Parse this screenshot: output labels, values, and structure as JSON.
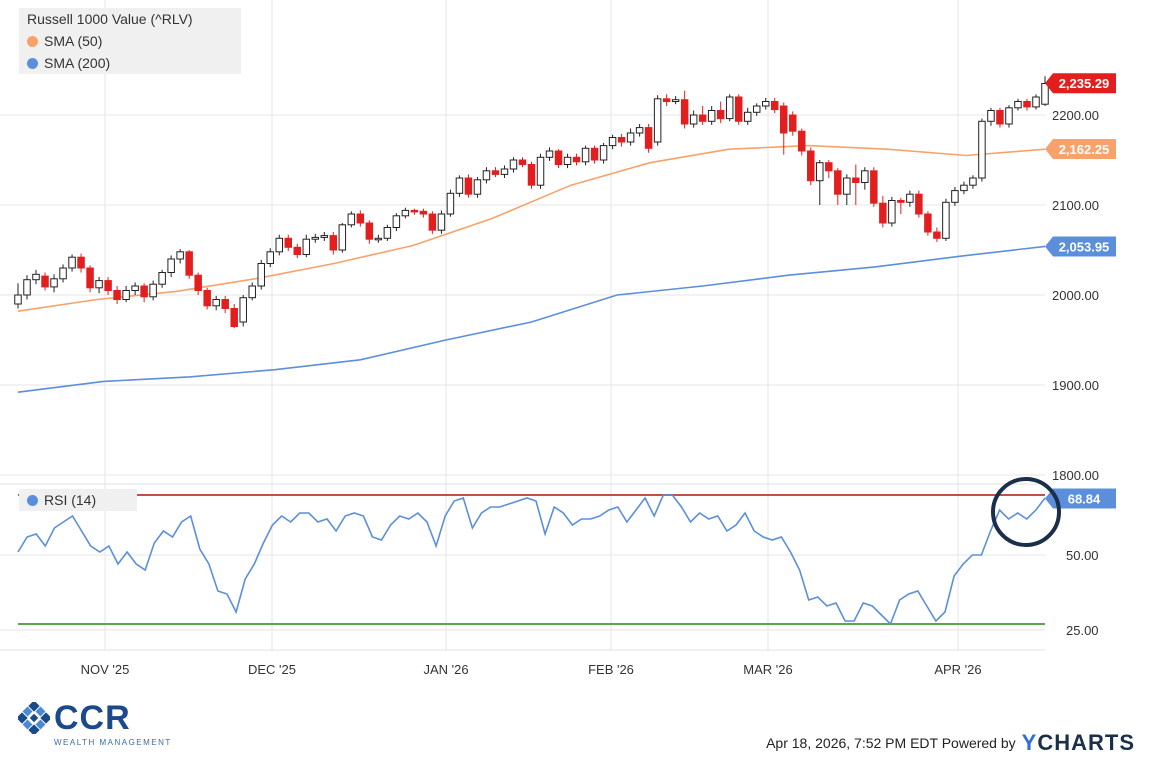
{
  "legend": {
    "title": "Russell 1000 Value (^RLV)",
    "sma50": "SMA (50)",
    "sma200": "SMA (200)",
    "rsi": "RSI (14)"
  },
  "colors": {
    "up": "#ffffff",
    "down": "#e31e1e",
    "sma50": "#f7a26a",
    "sma200": "#5b8fdc",
    "rsi": "#5b8fdc",
    "overbought": "#c0504d",
    "oversold": "#5aa84b",
    "price_tag": "#e31e1e",
    "sma50_tag": "#f7a26a",
    "sma200_tag": "#5b8fdc",
    "rsi_tag": "#5b8fdc",
    "highlight_circle": "#1b2e4a"
  },
  "footer": {
    "logo": "CCR",
    "logo_sub": "WEALTH MANAGEMENT",
    "timestamp": "Apr 18, 2026, 7:52 PM EDT Powered by",
    "brand_y": "Y",
    "brand": "CHARTS"
  },
  "chart_data": [
    {
      "type": "candlestick",
      "title": "Russell 1000 Value (^RLV)",
      "x_ticks": [
        "NOV '25",
        "DEC '25",
        "JAN '26",
        "FEB '26",
        "MAR '26",
        "APR '26"
      ],
      "y_ticks": [
        1800,
        1900,
        2000,
        2100,
        2200
      ],
      "y_tick_labels": [
        "1800.00",
        "1900.00",
        "2000.00",
        "2100.00",
        "2200.00"
      ],
      "ylim": [
        1790,
        2265
      ],
      "tags": {
        "last": "2,235.29",
        "sma50": "2,162.25",
        "sma200": "2,053.95"
      },
      "candles": [
        [
          1990,
          2000,
          1985,
          2013
        ],
        [
          2000,
          2017,
          1995,
          2022
        ],
        [
          2017,
          2023,
          2012,
          2028
        ],
        [
          2021,
          2009,
          2005,
          2025
        ],
        [
          2009,
          2018,
          2003,
          2023
        ],
        [
          2018,
          2030,
          2014,
          2034
        ],
        [
          2030,
          2042,
          2026,
          2045
        ],
        [
          2042,
          2030,
          2025,
          2046
        ],
        [
          2030,
          2008,
          2003,
          2033
        ],
        [
          2008,
          2016,
          2002,
          2020
        ],
        [
          2016,
          2005,
          2000,
          2020
        ],
        [
          2005,
          1995,
          1990,
          2010
        ],
        [
          1995,
          2005,
          1992,
          2010
        ],
        [
          2005,
          2010,
          2000,
          2014
        ],
        [
          2010,
          1998,
          1992,
          2013
        ],
        [
          1998,
          2012,
          1994,
          2016
        ],
        [
          2012,
          2025,
          2008,
          2028
        ],
        [
          2025,
          2040,
          2020,
          2044
        ],
        [
          2040,
          2048,
          2035,
          2051
        ],
        [
          2048,
          2022,
          2018,
          2050
        ],
        [
          2022,
          2005,
          2000,
          2025
        ],
        [
          2005,
          1988,
          1984,
          2008
        ],
        [
          1988,
          1995,
          1983,
          1999
        ],
        [
          1995,
          1985,
          1980,
          1999
        ],
        [
          1985,
          1965,
          1963,
          1990
        ],
        [
          1970,
          1997,
          1965,
          2000
        ],
        [
          1997,
          2010,
          1994,
          2014
        ],
        [
          2010,
          2035,
          2006,
          2039
        ],
        [
          2035,
          2048,
          2031,
          2052
        ],
        [
          2048,
          2063,
          2044,
          2067
        ],
        [
          2063,
          2053,
          2049,
          2067
        ],
        [
          2053,
          2045,
          2041,
          2057
        ],
        [
          2045,
          2062,
          2042,
          2067
        ],
        [
          2062,
          2064,
          2058,
          2068
        ],
        [
          2064,
          2066,
          2060,
          2070
        ],
        [
          2066,
          2050,
          2045,
          2070
        ],
        [
          2050,
          2078,
          2047,
          2080
        ],
        [
          2078,
          2090,
          2075,
          2093
        ],
        [
          2090,
          2080,
          2076,
          2094
        ],
        [
          2080,
          2062,
          2057,
          2083
        ],
        [
          2062,
          2063,
          2058,
          2067
        ],
        [
          2063,
          2075,
          2060,
          2078
        ],
        [
          2075,
          2088,
          2071,
          2091
        ],
        [
          2088,
          2094,
          2085,
          2097
        ],
        [
          2094,
          2093,
          2089,
          2096
        ],
        [
          2093,
          2090,
          2086,
          2096
        ],
        [
          2090,
          2072,
          2068,
          2093
        ],
        [
          2072,
          2090,
          2068,
          2094
        ],
        [
          2090,
          2113,
          2087,
          2117
        ],
        [
          2113,
          2130,
          2109,
          2133
        ],
        [
          2130,
          2112,
          2108,
          2134
        ],
        [
          2112,
          2128,
          2108,
          2131
        ],
        [
          2128,
          2138,
          2124,
          2142
        ],
        [
          2138,
          2134,
          2131,
          2142
        ],
        [
          2134,
          2140,
          2130,
          2144
        ],
        [
          2140,
          2150,
          2136,
          2153
        ],
        [
          2150,
          2145,
          2142,
          2153
        ],
        [
          2145,
          2122,
          2118,
          2148
        ],
        [
          2122,
          2153,
          2118,
          2157
        ],
        [
          2153,
          2160,
          2149,
          2164
        ],
        [
          2160,
          2145,
          2141,
          2162
        ],
        [
          2145,
          2153,
          2141,
          2157
        ],
        [
          2153,
          2148,
          2144,
          2157
        ],
        [
          2148,
          2163,
          2144,
          2166
        ],
        [
          2163,
          2150,
          2146,
          2166
        ],
        [
          2150,
          2166,
          2146,
          2169
        ],
        [
          2166,
          2175,
          2162,
          2178
        ],
        [
          2175,
          2170,
          2165,
          2179
        ],
        [
          2170,
          2180,
          2166,
          2185
        ],
        [
          2180,
          2186,
          2176,
          2190
        ],
        [
          2186,
          2163,
          2158,
          2190
        ],
        [
          2170,
          2218,
          2166,
          2222
        ],
        [
          2218,
          2215,
          2210,
          2223
        ],
        [
          2215,
          2217,
          2212,
          2221
        ],
        [
          2217,
          2190,
          2185,
          2227
        ],
        [
          2190,
          2200,
          2186,
          2205
        ],
        [
          2200,
          2193,
          2189,
          2210
        ],
        [
          2193,
          2205,
          2189,
          2210
        ],
        [
          2205,
          2196,
          2191,
          2215
        ],
        [
          2196,
          2220,
          2193,
          2223
        ],
        [
          2220,
          2193,
          2189,
          2223
        ],
        [
          2193,
          2203,
          2189,
          2208
        ],
        [
          2203,
          2210,
          2199,
          2213
        ],
        [
          2210,
          2215,
          2206,
          2219
        ],
        [
          2215,
          2206,
          2202,
          2219
        ],
        [
          2210,
          2180,
          2156,
          2214
        ],
        [
          2200,
          2182,
          2177,
          2204
        ],
        [
          2182,
          2160,
          2155,
          2185
        ],
        [
          2160,
          2127,
          2122,
          2164
        ],
        [
          2127,
          2147,
          2100,
          2150
        ],
        [
          2147,
          2138,
          2130,
          2150
        ],
        [
          2138,
          2112,
          2100,
          2141
        ],
        [
          2112,
          2130,
          2100,
          2134
        ],
        [
          2130,
          2125,
          2100,
          2145
        ],
        [
          2125,
          2138,
          2117,
          2142
        ],
        [
          2138,
          2102,
          2098,
          2142
        ],
        [
          2102,
          2080,
          2075,
          2110
        ],
        [
          2080,
          2105,
          2076,
          2109
        ],
        [
          2105,
          2103,
          2090,
          2108
        ],
        [
          2103,
          2112,
          2098,
          2116
        ],
        [
          2112,
          2090,
          2086,
          2116
        ],
        [
          2090,
          2070,
          2066,
          2093
        ],
        [
          2070,
          2063,
          2059,
          2075
        ],
        [
          2063,
          2103,
          2060,
          2107
        ],
        [
          2103,
          2116,
          2099,
          2120
        ],
        [
          2116,
          2122,
          2112,
          2126
        ],
        [
          2122,
          2130,
          2118,
          2133
        ],
        [
          2130,
          2193,
          2126,
          2196
        ],
        [
          2193,
          2205,
          2188,
          2208
        ],
        [
          2205,
          2190,
          2186,
          2208
        ],
        [
          2190,
          2208,
          2186,
          2211
        ],
        [
          2208,
          2215,
          2205,
          2218
        ],
        [
          2215,
          2209,
          2205,
          2218
        ],
        [
          2209,
          2220,
          2206,
          2223
        ],
        [
          2212,
          2235,
          2210,
          2243
        ]
      ],
      "series": [
        {
          "name": "SMA (50)",
          "values": [
            1982,
            1995,
            2004,
            2018,
            2035,
            2055,
            2085,
            2122,
            2147,
            2162,
            2166,
            2162,
            2155,
            2162
          ]
        },
        {
          "name": "SMA (200)",
          "values": [
            1892,
            1904,
            1909,
            1917,
            1928,
            1950,
            1970,
            2000,
            2010,
            2022,
            2031,
            2043,
            2054
          ]
        }
      ]
    },
    {
      "type": "line",
      "title": "RSI (14)",
      "y_ticks": [
        25,
        50
      ],
      "y_tick_labels": [
        "25.00",
        "50.00"
      ],
      "ylim": [
        17,
        80
      ],
      "reference_lines": [
        70,
        27
      ],
      "tag": "68.84",
      "series": [
        {
          "name": "RSI (14)",
          "values": [
            51,
            56,
            57,
            53,
            59,
            61,
            63,
            58,
            53,
            51,
            53,
            47,
            51,
            47,
            45,
            54,
            58,
            56,
            61,
            63,
            52,
            47,
            38,
            37,
            31,
            42,
            47,
            54,
            60,
            63,
            61,
            64,
            64,
            61,
            62,
            58,
            63,
            64,
            63,
            56,
            55,
            60,
            63,
            62,
            64,
            61,
            53,
            63,
            68,
            69,
            59,
            64,
            66,
            66,
            67,
            68,
            69,
            68,
            57,
            66,
            64,
            60,
            62,
            62,
            63,
            65,
            66,
            61,
            65,
            69,
            63,
            70,
            70,
            66,
            61,
            64,
            62,
            63,
            58,
            60,
            64,
            58,
            56,
            55,
            56,
            51,
            45,
            35,
            36,
            33,
            34,
            28,
            28,
            34,
            33,
            30,
            27,
            35,
            37,
            38,
            33,
            28,
            31,
            43,
            47,
            50,
            50,
            58,
            65,
            62,
            64,
            62,
            65,
            69
          ]
        }
      ]
    }
  ]
}
